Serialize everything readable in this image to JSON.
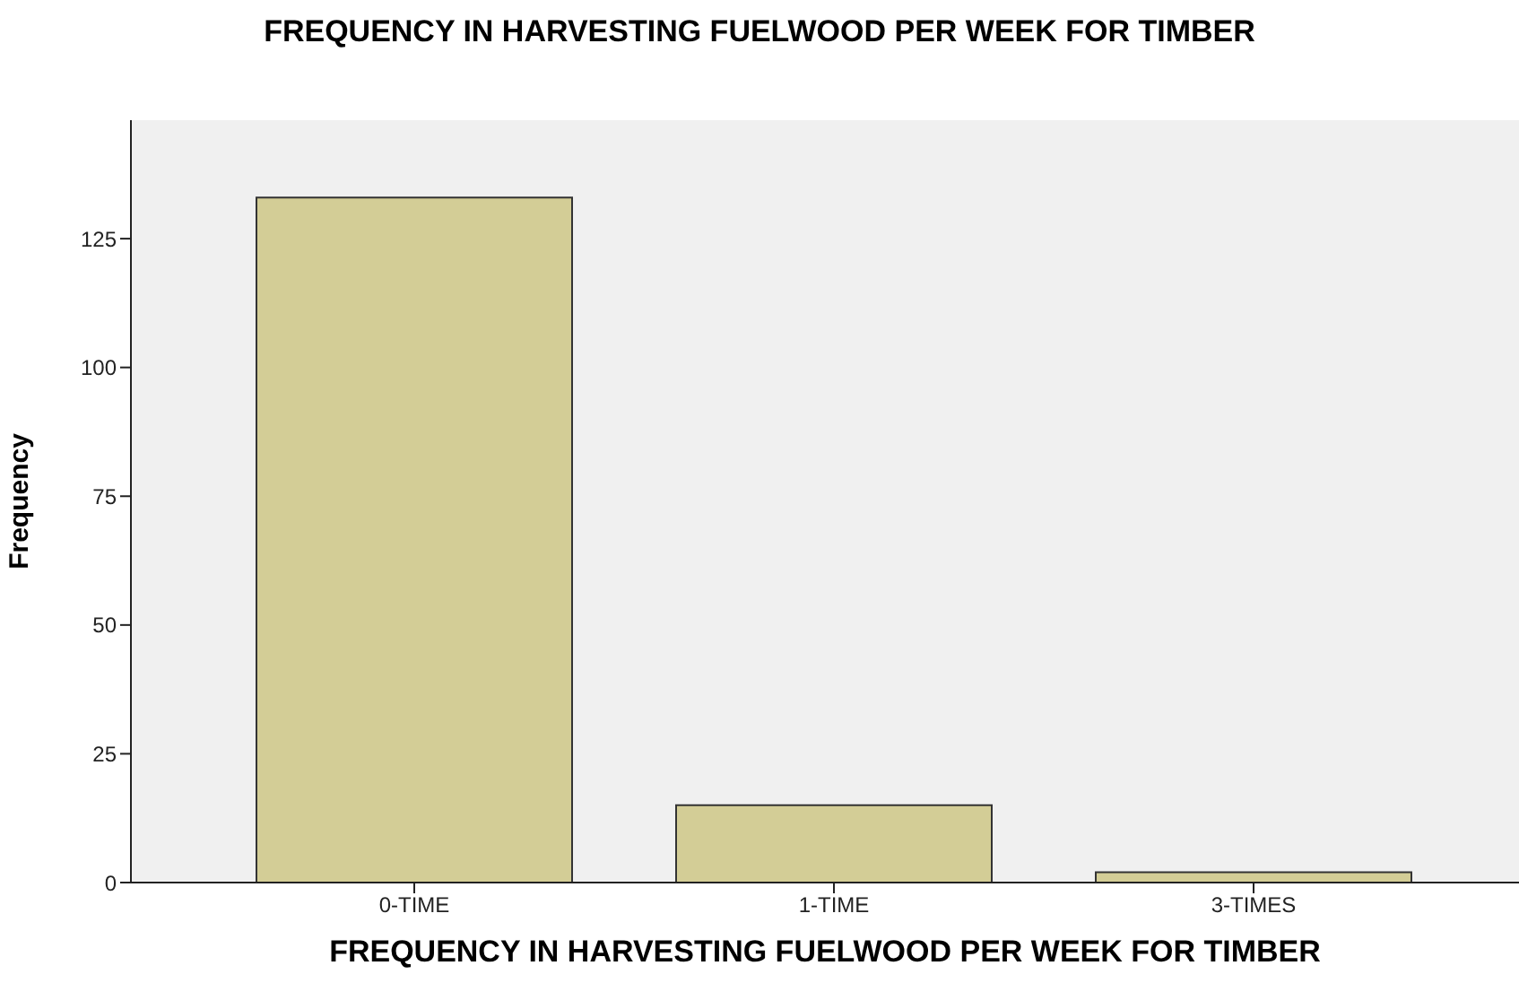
{
  "chart_data": {
    "type": "bar",
    "title": "FREQUENCY IN HARVESTING FUELWOOD PER WEEK FOR TIMBER",
    "xlabel": "FREQUENCY IN HARVESTING FUELWOOD PER WEEK FOR TIMBER",
    "ylabel": "Frequency",
    "categories": [
      "0-TIME",
      "1-TIME",
      "3-TIMES"
    ],
    "values": [
      133,
      15,
      2
    ],
    "color": "#d3cd96",
    "ylim": [
      0,
      148
    ],
    "yticks": [
      0,
      25,
      50,
      75,
      100,
      125
    ],
    "grid": false
  }
}
